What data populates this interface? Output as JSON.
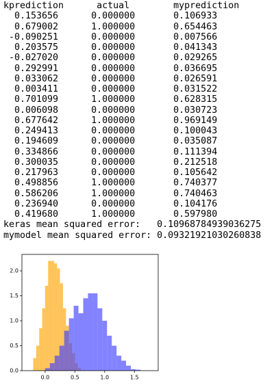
{
  "table": {
    "header": [
      "kprediction",
      "actual",
      "myprediction"
    ],
    "rows": [
      [
        "0.153656",
        "0.000000",
        "0.106933"
      ],
      [
        "0.679002",
        "1.000000",
        "0.654463"
      ],
      [
        "-0.090251",
        "0.000000",
        "0.007566"
      ],
      [
        "0.203575",
        "0.000000",
        "0.041343"
      ],
      [
        "-0.027020",
        "0.000000",
        "0.029265"
      ],
      [
        "0.292991",
        "0.000000",
        "0.036695"
      ],
      [
        "0.033062",
        "0.000000",
        "0.026591"
      ],
      [
        "0.003411",
        "0.000000",
        "0.031522"
      ],
      [
        "0.701099",
        "1.000000",
        "0.628315"
      ],
      [
        "0.006098",
        "0.000000",
        "0.030723"
      ],
      [
        "0.677642",
        "1.000000",
        "0.969149"
      ],
      [
        "0.249413",
        "0.000000",
        "0.100043"
      ],
      [
        "0.194609",
        "0.000000",
        "0.035087"
      ],
      [
        "0.334866",
        "0.000000",
        "0.111394"
      ],
      [
        "0.300035",
        "0.000000",
        "0.212518"
      ],
      [
        "0.217963",
        "0.000000",
        "0.105642"
      ],
      [
        "0.498856",
        "1.000000",
        "0.740377"
      ],
      [
        "0.586206",
        "1.000000",
        "0.740463"
      ],
      [
        "0.236940",
        "0.000000",
        "0.104176"
      ],
      [
        "0.419680",
        "1.000000",
        "0.597980"
      ]
    ]
  },
  "errors": [
    {
      "label": "keras mean squared error:",
      "value": "0.10968784939036275"
    },
    {
      "label": "mymodel mean squared error:",
      "value": "0.09321921030260838"
    }
  ],
  "chart_data": {
    "type": "histogram",
    "alpha": 0.65,
    "xlim": [
      -0.39,
      1.9
    ],
    "ylim": [
      0,
      2.33
    ],
    "xticks": [
      {
        "value": 0,
        "label": "0.0"
      },
      {
        "value": 0.5,
        "label": "0.5"
      },
      {
        "value": 1,
        "label": "1.0"
      },
      {
        "value": 1.5,
        "label": "1.5"
      }
    ],
    "yticks": [
      {
        "value": 0,
        "label": "0.0"
      },
      {
        "value": 0.5,
        "label": "0.5"
      },
      {
        "value": 1,
        "label": "1.0"
      },
      {
        "value": 1.5,
        "label": "1.5"
      },
      {
        "value": 2,
        "label": "2.0"
      }
    ],
    "series": [
      {
        "color": "#ffa500",
        "bins": [
          -0.2,
          -0.15,
          -0.1,
          -0.05,
          0,
          0.05,
          0.1,
          0.15,
          0.2,
          0.25,
          0.3,
          0.35,
          0.4,
          0.45,
          0.5,
          0.55,
          0.6
        ],
        "values": [
          0.25,
          0.5,
          0.85,
          1.25,
          1.7,
          2.2,
          2.2,
          2.15,
          2.05,
          1.75,
          1.25,
          0.9,
          0.55,
          0.35,
          0.15,
          0.05
        ]
      },
      {
        "color": "#4040ff",
        "bins": [
          0,
          0.08,
          0.16,
          0.24,
          0.32,
          0.4,
          0.48,
          0.56,
          0.64,
          0.72,
          0.8,
          0.88,
          0.96,
          1.04,
          1.12,
          1.2,
          1.28,
          1.36,
          1.44,
          1.52,
          1.6
        ],
        "values": [
          0.05,
          0.15,
          0.3,
          0.5,
          0.8,
          1.05,
          1.3,
          1.15,
          1.45,
          1.55,
          1.55,
          1.25,
          1.0,
          0.7,
          0.5,
          0.3,
          0.2,
          0.1,
          0.03,
          0.02
        ]
      }
    ]
  }
}
